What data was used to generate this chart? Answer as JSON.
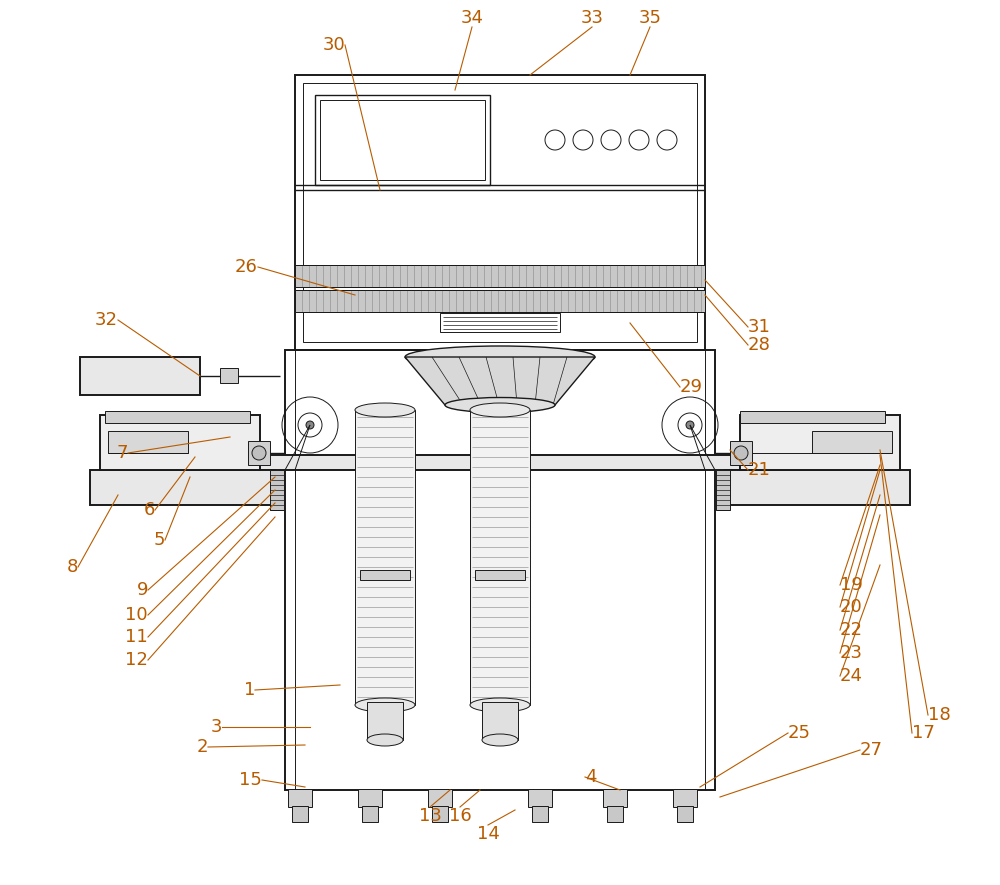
{
  "bg_color": "#ffffff",
  "line_color": "#1a1a1a",
  "label_color": "#b85c00",
  "figsize": [
    10.0,
    8.85
  ],
  "dpi": 100,
  "lw_main": 1.4,
  "lw_thin": 0.7,
  "lw_med": 1.0
}
